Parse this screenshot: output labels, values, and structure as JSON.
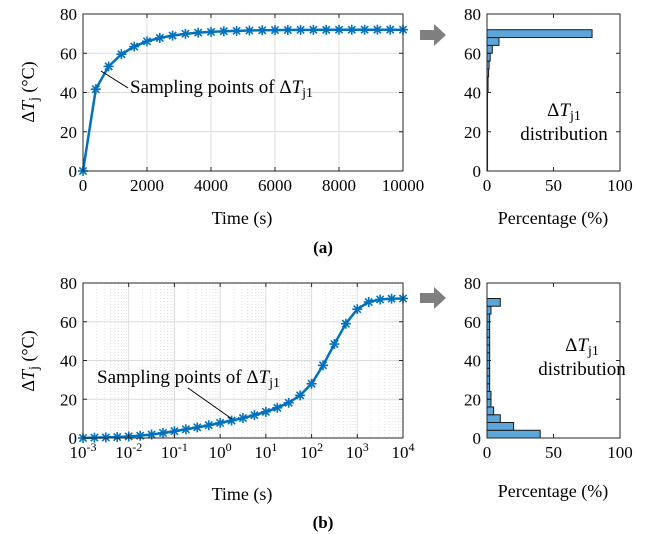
{
  "colors": {
    "series": "#0072BD",
    "bar_fill": "#5DA6D9",
    "bar_edge": "#1A1A1A",
    "grid": "#DCDCDC",
    "arrow": "#7F7F7F"
  },
  "panels": [
    {
      "caption": "(a)",
      "line": {
        "ylabel_delta": "Δ",
        "ylabel_T": "T",
        "ylabel_sub": "j",
        "ylabel_unit": " (°C)",
        "xlabel": "Time (s)",
        "annotation_main": "Sampling points of Δ",
        "annotation_T": "T",
        "annotation_sub": "j1"
      },
      "hist": {
        "xlabel": "Percentage (%)",
        "annotation_delta": "Δ",
        "annotation_T": "T",
        "annotation_sub": "j1",
        "annotation_line2": "distribution"
      }
    },
    {
      "caption": "(b)",
      "line": {
        "ylabel_delta": "Δ",
        "ylabel_T": "T",
        "ylabel_sub": "j",
        "ylabel_unit": " (°C)",
        "xlabel": "Time (s)",
        "annotation_main": "Sampling points of Δ",
        "annotation_T": "T",
        "annotation_sub": "j1"
      },
      "hist": {
        "xlabel": "Percentage (%)",
        "annotation_delta": "Δ",
        "annotation_T": "T",
        "annotation_sub": "j1",
        "annotation_line2": "distribution"
      }
    }
  ],
  "chart_data": [
    {
      "id": "a-line",
      "type": "line",
      "xscale": "linear",
      "xlim": [
        0,
        10000
      ],
      "ylim": [
        0,
        80
      ],
      "xticks": [
        "0",
        "2000",
        "4000",
        "6000",
        "8000",
        "10000"
      ],
      "yticks": [
        "0",
        "20",
        "40",
        "60",
        "80"
      ],
      "grid": true,
      "marker": "asterisk",
      "x": [
        0,
        400,
        800,
        1200,
        1600,
        2000,
        2400,
        2800,
        3200,
        3600,
        4000,
        4400,
        4800,
        5200,
        5600,
        6000,
        6400,
        6800,
        7200,
        7600,
        8000,
        8400,
        8800,
        9200,
        9600,
        10000
      ],
      "y": [
        0,
        41.7,
        53.3,
        59.5,
        63.4,
        66.1,
        67.8,
        69.0,
        69.9,
        70.5,
        70.9,
        71.2,
        71.4,
        71.6,
        71.7,
        71.8,
        71.85,
        71.9,
        71.93,
        71.95,
        71.97,
        71.98,
        71.99,
        72.0,
        72.0,
        72.0
      ]
    },
    {
      "id": "a-hist",
      "type": "bar",
      "orientation": "horizontal",
      "xlim": [
        0,
        100
      ],
      "ylim": [
        0,
        80
      ],
      "xticks": [
        "0",
        "50",
        "100"
      ],
      "yticks": [
        "0",
        "20",
        "40",
        "60",
        "80"
      ],
      "bin_edges": [
        0,
        4,
        8,
        12,
        16,
        20,
        24,
        28,
        32,
        36,
        40,
        44,
        48,
        52,
        56,
        60,
        64,
        68,
        72
      ],
      "values": [
        0.4,
        0.4,
        0.4,
        0.4,
        0.4,
        0.4,
        0.4,
        0.4,
        0.4,
        0.4,
        0.8,
        0.8,
        1.2,
        1.6,
        2.4,
        4,
        9,
        79
      ]
    },
    {
      "id": "b-line",
      "type": "line",
      "xscale": "log",
      "xlim": [
        0.001,
        10000
      ],
      "ylim": [
        0,
        80
      ],
      "xticks": [
        "10^-3",
        "10^-2",
        "10^-1",
        "10^0",
        "10^1",
        "10^2",
        "10^3",
        "10^4"
      ],
      "yticks": [
        "0",
        "20",
        "40",
        "60",
        "80"
      ],
      "grid": true,
      "marker": "asterisk",
      "x": [
        0.001,
        0.00178,
        0.00316,
        0.00562,
        0.01,
        0.0178,
        0.0316,
        0.0562,
        0.1,
        0.178,
        0.316,
        0.562,
        1,
        1.78,
        3.16,
        5.62,
        10,
        17.8,
        31.6,
        56.2,
        100,
        178,
        316,
        562,
        1000,
        1780,
        3160,
        5620,
        10000
      ],
      "y": [
        0,
        0.2,
        0.3,
        0.5,
        0.8,
        1.2,
        1.8,
        2.6,
        3.5,
        4.5,
        5.5,
        6.6,
        7.8,
        9.0,
        10.3,
        11.8,
        13.5,
        15.6,
        18.2,
        22,
        28,
        37.5,
        48.5,
        59,
        66.5,
        70.2,
        71.5,
        71.9,
        72
      ]
    },
    {
      "id": "b-hist",
      "type": "bar",
      "orientation": "horizontal",
      "xlim": [
        0,
        100
      ],
      "ylim": [
        0,
        80
      ],
      "xticks": [
        "0",
        "50",
        "100"
      ],
      "yticks": [
        "0",
        "20",
        "40",
        "60",
        "80"
      ],
      "bin_edges": [
        0,
        4,
        8,
        12,
        16,
        20,
        24,
        28,
        32,
        36,
        40,
        44,
        48,
        52,
        56,
        60,
        64,
        68,
        72
      ],
      "values": [
        40,
        20,
        10,
        5,
        3,
        3,
        2,
        2,
        2,
        2,
        2,
        2,
        2,
        2,
        2,
        2,
        3,
        10
      ]
    }
  ]
}
